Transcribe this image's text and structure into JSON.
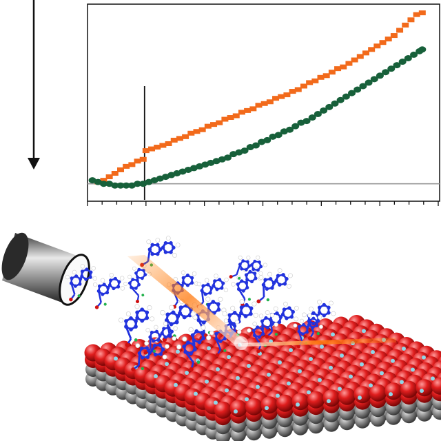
{
  "colors": {
    "series_orange": "#f26a1b",
    "series_green": "#17603a",
    "baseline": "#9a9a9a",
    "axis": "#111111",
    "oxide_red": "#e01e1e",
    "substrate_grey": "#8c8c8c",
    "molecule_blue": "#2233dd",
    "beam_orange": "#ff8a1e"
  },
  "icons": [
    "down-arrow-icon",
    "doser-tube-icon",
    "laser-beam-icon"
  ],
  "chart_data": {
    "type": "scatter",
    "title": "",
    "xlabel": "",
    "ylabel": "",
    "x_ticks": 25,
    "xlim": [
      0,
      24
    ],
    "ylim": [
      -0.1,
      1.03
    ],
    "grid": false,
    "legend": "none",
    "event_marker_x": 3.9,
    "baseline_y": 0.0,
    "series": [
      {
        "color": "#f26a1b",
        "marker": "square",
        "points": [
          [
            0.6,
            0.01
          ],
          [
            1.0,
            0.02
          ],
          [
            1.4,
            0.04
          ],
          [
            1.8,
            0.06
          ],
          [
            2.2,
            0.08
          ],
          [
            2.6,
            0.1
          ],
          [
            3.0,
            0.11
          ],
          [
            3.4,
            0.13
          ],
          [
            3.8,
            0.14
          ],
          [
            4.0,
            0.19
          ],
          [
            4.4,
            0.2
          ],
          [
            4.8,
            0.21
          ],
          [
            5.2,
            0.22
          ],
          [
            5.6,
            0.23
          ],
          [
            6.0,
            0.25
          ],
          [
            6.4,
            0.26
          ],
          [
            6.8,
            0.27
          ],
          [
            7.2,
            0.29
          ],
          [
            7.6,
            0.3
          ],
          [
            8.0,
            0.31
          ],
          [
            8.4,
            0.33
          ],
          [
            8.8,
            0.34
          ],
          [
            9.2,
            0.35
          ],
          [
            9.6,
            0.37
          ],
          [
            10.0,
            0.38
          ],
          [
            10.4,
            0.39
          ],
          [
            10.8,
            0.41
          ],
          [
            11.2,
            0.42
          ],
          [
            11.6,
            0.43
          ],
          [
            12.0,
            0.45
          ],
          [
            12.4,
            0.46
          ],
          [
            12.8,
            0.47
          ],
          [
            13.2,
            0.49
          ],
          [
            13.6,
            0.5
          ],
          [
            14.0,
            0.51
          ],
          [
            14.4,
            0.53
          ],
          [
            14.8,
            0.54
          ],
          [
            15.2,
            0.56
          ],
          [
            15.6,
            0.58
          ],
          [
            16.0,
            0.59
          ],
          [
            16.4,
            0.61
          ],
          [
            16.8,
            0.62
          ],
          [
            17.2,
            0.64
          ],
          [
            17.6,
            0.66
          ],
          [
            18.0,
            0.67
          ],
          [
            18.4,
            0.69
          ],
          [
            18.8,
            0.71
          ],
          [
            19.2,
            0.73
          ],
          [
            19.6,
            0.75
          ],
          [
            20.0,
            0.77
          ],
          [
            20.4,
            0.79
          ],
          [
            20.8,
            0.81
          ],
          [
            21.2,
            0.83
          ],
          [
            21.6,
            0.85
          ],
          [
            22.0,
            0.88
          ],
          [
            22.4,
            0.91
          ],
          [
            22.8,
            0.94
          ],
          [
            23.2,
            0.97
          ],
          [
            23.6,
            0.98
          ]
        ]
      },
      {
        "color": "#17603a",
        "marker": "circle",
        "points": [
          [
            0.2,
            0.02
          ],
          [
            0.6,
            0.01
          ],
          [
            1.0,
            0.0
          ],
          [
            1.4,
            0.0
          ],
          [
            1.8,
            -0.01
          ],
          [
            2.2,
            -0.01
          ],
          [
            2.6,
            -0.01
          ],
          [
            3.0,
            -0.01
          ],
          [
            3.4,
            0.0
          ],
          [
            3.8,
            0.0
          ],
          [
            4.2,
            0.01
          ],
          [
            4.6,
            0.02
          ],
          [
            5.0,
            0.03
          ],
          [
            5.4,
            0.04
          ],
          [
            5.8,
            0.05
          ],
          [
            6.2,
            0.06
          ],
          [
            6.6,
            0.07
          ],
          [
            7.0,
            0.08
          ],
          [
            7.4,
            0.09
          ],
          [
            7.8,
            0.1
          ],
          [
            8.2,
            0.11
          ],
          [
            8.6,
            0.12
          ],
          [
            9.0,
            0.13
          ],
          [
            9.4,
            0.14
          ],
          [
            9.8,
            0.15
          ],
          [
            10.2,
            0.17
          ],
          [
            10.6,
            0.18
          ],
          [
            11.0,
            0.19
          ],
          [
            11.4,
            0.21
          ],
          [
            11.8,
            0.22
          ],
          [
            12.2,
            0.24
          ],
          [
            12.6,
            0.25
          ],
          [
            13.0,
            0.27
          ],
          [
            13.4,
            0.28
          ],
          [
            13.8,
            0.3
          ],
          [
            14.2,
            0.31
          ],
          [
            14.6,
            0.33
          ],
          [
            15.0,
            0.35
          ],
          [
            15.4,
            0.36
          ],
          [
            15.8,
            0.38
          ],
          [
            16.2,
            0.4
          ],
          [
            16.6,
            0.42
          ],
          [
            17.0,
            0.44
          ],
          [
            17.4,
            0.46
          ],
          [
            17.8,
            0.48
          ],
          [
            18.2,
            0.5
          ],
          [
            18.6,
            0.52
          ],
          [
            19.0,
            0.54
          ],
          [
            19.4,
            0.56
          ],
          [
            19.8,
            0.58
          ],
          [
            20.2,
            0.6
          ],
          [
            20.6,
            0.62
          ],
          [
            21.0,
            0.64
          ],
          [
            21.4,
            0.66
          ],
          [
            21.8,
            0.68
          ],
          [
            22.2,
            0.7
          ],
          [
            22.6,
            0.72
          ],
          [
            23.0,
            0.74
          ],
          [
            23.4,
            0.76
          ],
          [
            23.6,
            0.77
          ]
        ]
      }
    ]
  }
}
